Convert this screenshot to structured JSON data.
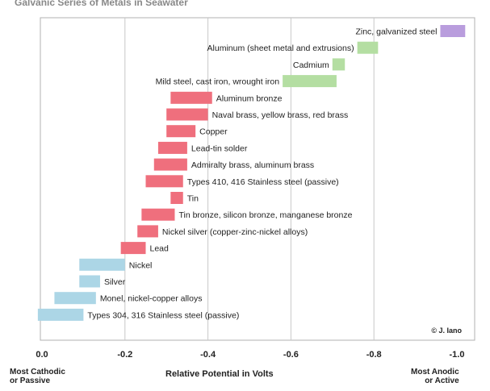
{
  "chart_data": {
    "type": "bar",
    "title": "Galvanic Series of Metals in Seawater",
    "xlabel": "Relative Potential in Volts",
    "left_end_label": "Most Cathodic\nor Passive",
    "right_end_label": "Most Anodic\nor Active",
    "credit": "© J. Iano",
    "xlim": [
      0,
      -1.0
    ],
    "xticks": [
      "0.0",
      "-0.2",
      "-0.4",
      "-0.6",
      "-0.8",
      "-1.0"
    ],
    "grid": true,
    "bars": [
      {
        "label": "Zinc, galvanized steel",
        "start": -0.96,
        "end": -1.02,
        "color": "#b99ddd"
      },
      {
        "label": "Aluminum (sheet metal and extrusions)",
        "start": -0.76,
        "end": -0.81,
        "color": "#b4dea2"
      },
      {
        "label": "Cadmium",
        "start": -0.7,
        "end": -0.73,
        "color": "#b4dea2"
      },
      {
        "label": "Mild steel, cast iron, wrought iron",
        "start": -0.58,
        "end": -0.71,
        "color": "#b4dea2"
      },
      {
        "label": "Aluminum bronze",
        "start": -0.31,
        "end": -0.41,
        "color": "#ef6f7d"
      },
      {
        "label": "Naval brass, yellow brass, red brass",
        "start": -0.3,
        "end": -0.4,
        "color": "#ef6f7d"
      },
      {
        "label": "Copper",
        "start": -0.3,
        "end": -0.37,
        "color": "#ef6f7d"
      },
      {
        "label": "Lead-tin solder",
        "start": -0.28,
        "end": -0.35,
        "color": "#ef6f7d"
      },
      {
        "label": "Admiralty brass, aluminum brass",
        "start": -0.27,
        "end": -0.35,
        "color": "#ef6f7d"
      },
      {
        "label": "Types 410, 416 Stainless steel (passive)",
        "start": -0.25,
        "end": -0.34,
        "color": "#ef6f7d"
      },
      {
        "label": "Tin",
        "start": -0.31,
        "end": -0.34,
        "color": "#ef6f7d"
      },
      {
        "label": "Tin bronze, silicon bronze, manganese bronze",
        "start": -0.24,
        "end": -0.32,
        "color": "#ef6f7d"
      },
      {
        "label": "Nickel silver (copper-zinc-nickel alloys)",
        "start": -0.23,
        "end": -0.28,
        "color": "#ef6f7d"
      },
      {
        "label": "Lead",
        "start": -0.19,
        "end": -0.25,
        "color": "#ef6f7d"
      },
      {
        "label": "Nickel",
        "start": -0.09,
        "end": -0.2,
        "color": "#acd6e6"
      },
      {
        "label": "Silver",
        "start": -0.09,
        "end": -0.14,
        "color": "#acd6e6"
      },
      {
        "label": "Monel, nickel-copper alloys",
        "start": -0.03,
        "end": -0.13,
        "color": "#acd6e6"
      },
      {
        "label": "Types 304, 316 Stainless steel (passive)",
        "start": 0.01,
        "end": -0.1,
        "color": "#acd6e6"
      }
    ]
  }
}
